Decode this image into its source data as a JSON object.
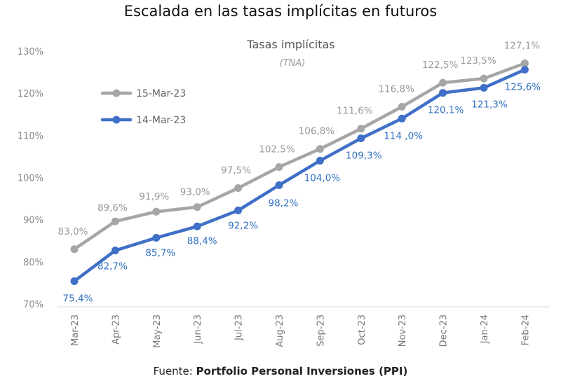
{
  "chart_data": {
    "type": "line",
    "title": "Escalada en las tasas implícitas en futuros",
    "subtitle": "Tasas implícitas",
    "subtitle2": "(TNA)",
    "categories": [
      "Mar-23",
      "Apr-23",
      "May-23",
      "Jun-23",
      "Jul-23",
      "Aug-23",
      "Sep-23",
      "Oct-23",
      "Nov-23",
      "Dec-23",
      "Jan-24",
      "Feb-24"
    ],
    "yticks": [
      "70%",
      "80%",
      "90%",
      "100%",
      "110%",
      "120%",
      "130%"
    ],
    "ylim": [
      70,
      130
    ],
    "grid": false,
    "legend_position": "top-left",
    "series": [
      {
        "name": "15-Mar-23",
        "color": "#a6a6a6",
        "label_color": "#9a9a9a",
        "values": [
          83.0,
          89.6,
          91.9,
          93.0,
          97.5,
          102.5,
          106.8,
          111.6,
          116.8,
          122.5,
          123.5,
          127.1
        ],
        "labels": [
          "83,0%",
          "89,6%",
          "91,9%",
          "93,0%",
          "97,5%",
          "102,5%",
          "106,8%",
          "111,6%",
          "116,8%",
          "122,5%",
          "123,5%",
          "127,1%"
        ]
      },
      {
        "name": "14-Mar-23",
        "color": "#3f6fc7",
        "label_color": "#2f6fc0",
        "values": [
          75.4,
          82.7,
          85.7,
          88.4,
          92.2,
          98.2,
          104.0,
          109.3,
          114.0,
          120.1,
          121.3,
          125.6
        ],
        "labels": [
          "75,4%",
          "82,7%",
          "85,7%",
          "88,4%",
          "92,2%",
          "98,2%",
          "104,0%",
          "109,3%",
          "114 ,0%",
          "120,1%",
          "121,3%",
          "125,6%"
        ]
      }
    ]
  },
  "source": {
    "prefix": "Fuente: ",
    "name": "Portfolio Personal Inversiones (PPI)"
  }
}
